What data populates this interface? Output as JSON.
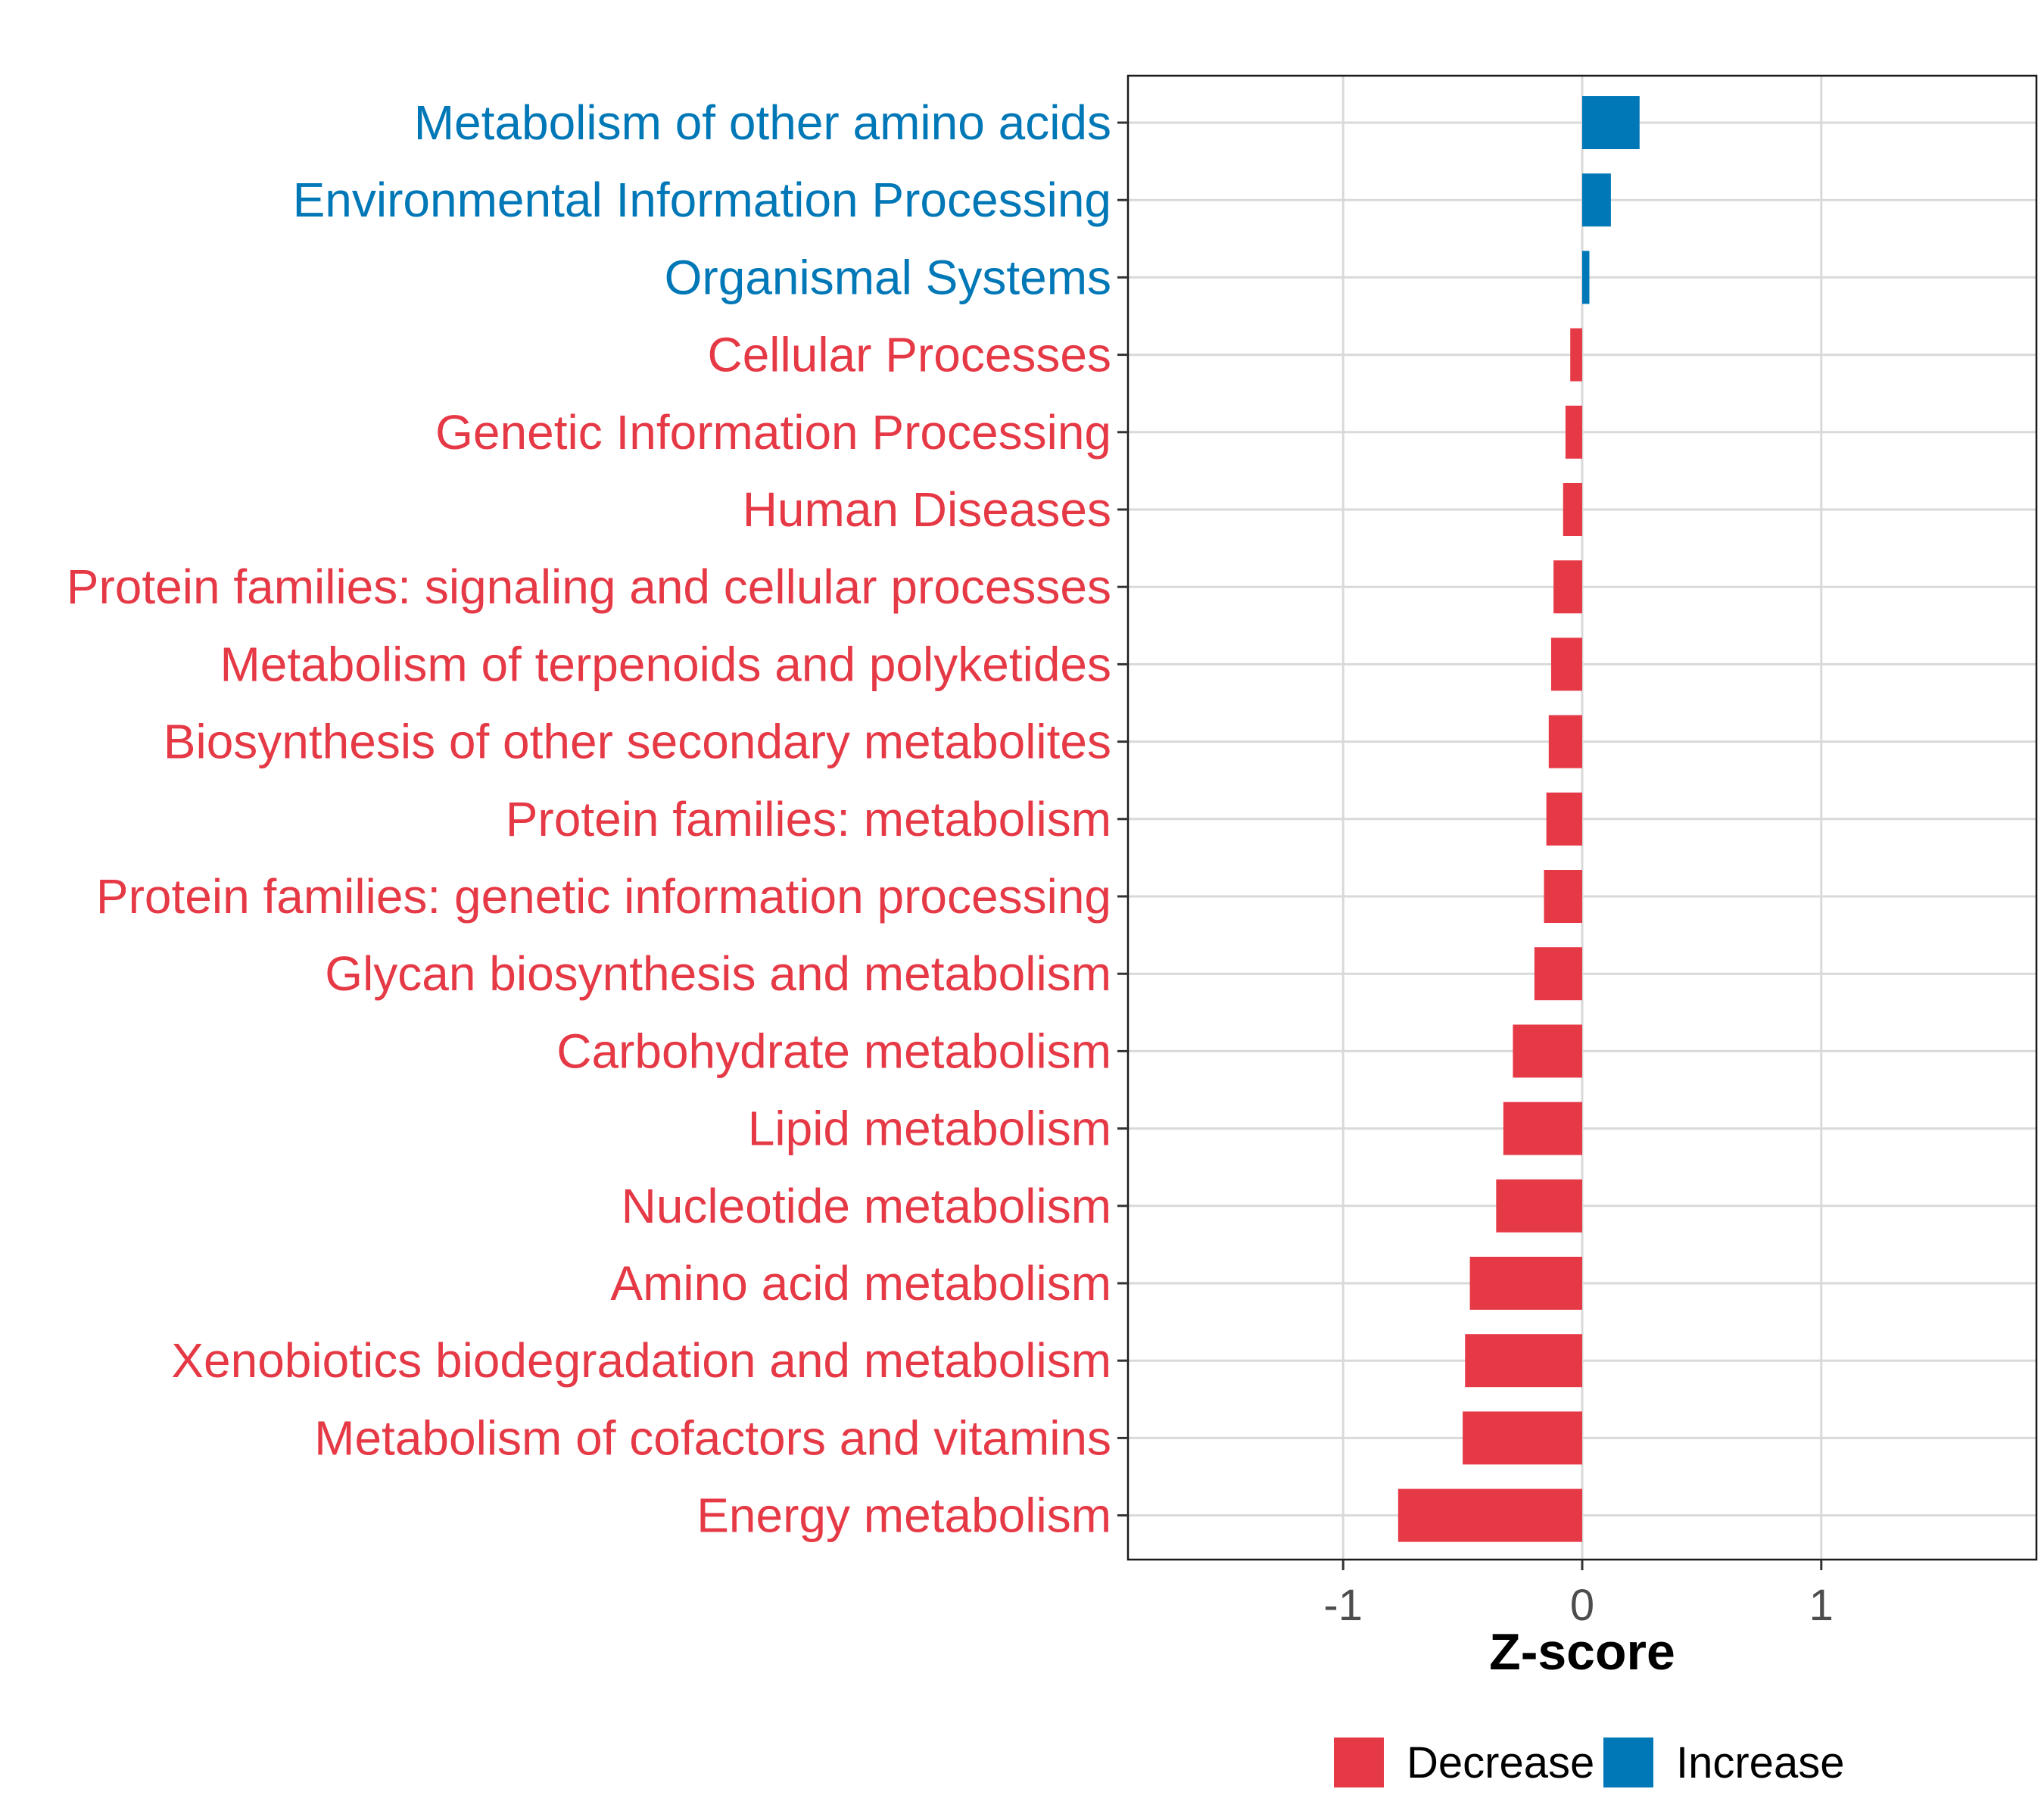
{
  "chart_data": {
    "type": "bar",
    "orientation": "horizontal",
    "xlabel": "Z-score",
    "xlim": [
      -1.9,
      1.9
    ],
    "xticks": [
      -1,
      0,
      1
    ],
    "xtick_labels": [
      "-1",
      "0",
      "1"
    ],
    "grid": true,
    "legend_position": "bottom",
    "legend": [
      {
        "label": "Decrease",
        "color": "#E63946"
      },
      {
        "label": "Increase",
        "color": "#0077B6"
      }
    ],
    "categories": [
      "Metabolism of other amino acids",
      "Environmental Information Processing",
      "Organismal Systems",
      "Cellular Processes",
      "Genetic Information Processing",
      "Human Diseases",
      "Protein families: signaling and cellular processes",
      "Metabolism of terpenoids and polyketides",
      "Biosynthesis of other secondary metabolites",
      "Protein families: metabolism",
      "Protein families: genetic information processing",
      "Glycan biosynthesis and metabolism",
      "Carbohydrate metabolism",
      "Lipid metabolism",
      "Nucleotide metabolism",
      "Amino acid metabolism",
      "Xenobiotics biodegradation and metabolism",
      "Metabolism of cofactors and vitamins",
      "Energy metabolism"
    ],
    "values": [
      0.24,
      0.12,
      0.03,
      -0.05,
      -0.07,
      -0.08,
      -0.12,
      -0.13,
      -0.14,
      -0.15,
      -0.16,
      -0.2,
      -0.29,
      -0.33,
      -0.36,
      -0.47,
      -0.49,
      -0.5,
      -0.77
    ],
    "groups": [
      "Increase",
      "Increase",
      "Increase",
      "Decrease",
      "Decrease",
      "Decrease",
      "Decrease",
      "Decrease",
      "Decrease",
      "Decrease",
      "Decrease",
      "Decrease",
      "Decrease",
      "Decrease",
      "Decrease",
      "Decrease",
      "Decrease",
      "Decrease",
      "Decrease"
    ]
  }
}
